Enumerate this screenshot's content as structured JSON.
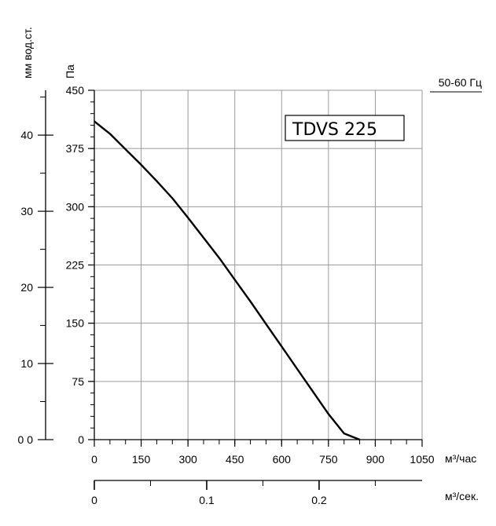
{
  "chart_data": {
    "type": "line",
    "title": "TDVS 225",
    "frequency_label": "50-60 Гц",
    "x_unit_primary": "м³/час",
    "x_unit_secondary": "м³/сек.",
    "y_unit_primary": "Па",
    "y_unit_secondary": "мм вод.ст.",
    "xlim": [
      0,
      1050
    ],
    "ylim": [
      0,
      450
    ],
    "x_ticks": [
      0,
      150,
      300,
      450,
      600,
      750,
      900,
      1050
    ],
    "x_tick_labels": [
      "0",
      "150",
      "300",
      "450",
      "600",
      "750",
      "900",
      "1050"
    ],
    "y_ticks": [
      0,
      75,
      150,
      225,
      300,
      375,
      450
    ],
    "y_tick_labels": [
      "0",
      "75",
      "150",
      "225",
      "300",
      "375",
      "450"
    ],
    "y2_ticks": [
      0,
      10,
      20,
      30,
      40
    ],
    "y2_tick_labels": [
      "0 0",
      "10",
      "20",
      "30",
      "40"
    ],
    "x2_ticks": [
      0,
      0.1,
      0.2
    ],
    "x2_tick_labels": [
      "0",
      "0.1",
      "0.2"
    ],
    "grid": true,
    "series": [
      {
        "x": [
          0,
          50,
          100,
          150,
          200,
          250,
          300,
          350,
          400,
          450,
          500,
          550,
          600,
          650,
          700,
          750,
          800,
          850
        ],
        "y": [
          410,
          394,
          374,
          354,
          333,
          311,
          286,
          260,
          234,
          206,
          178,
          149,
          120,
          91,
          62,
          33,
          8,
          -4
        ]
      }
    ]
  }
}
